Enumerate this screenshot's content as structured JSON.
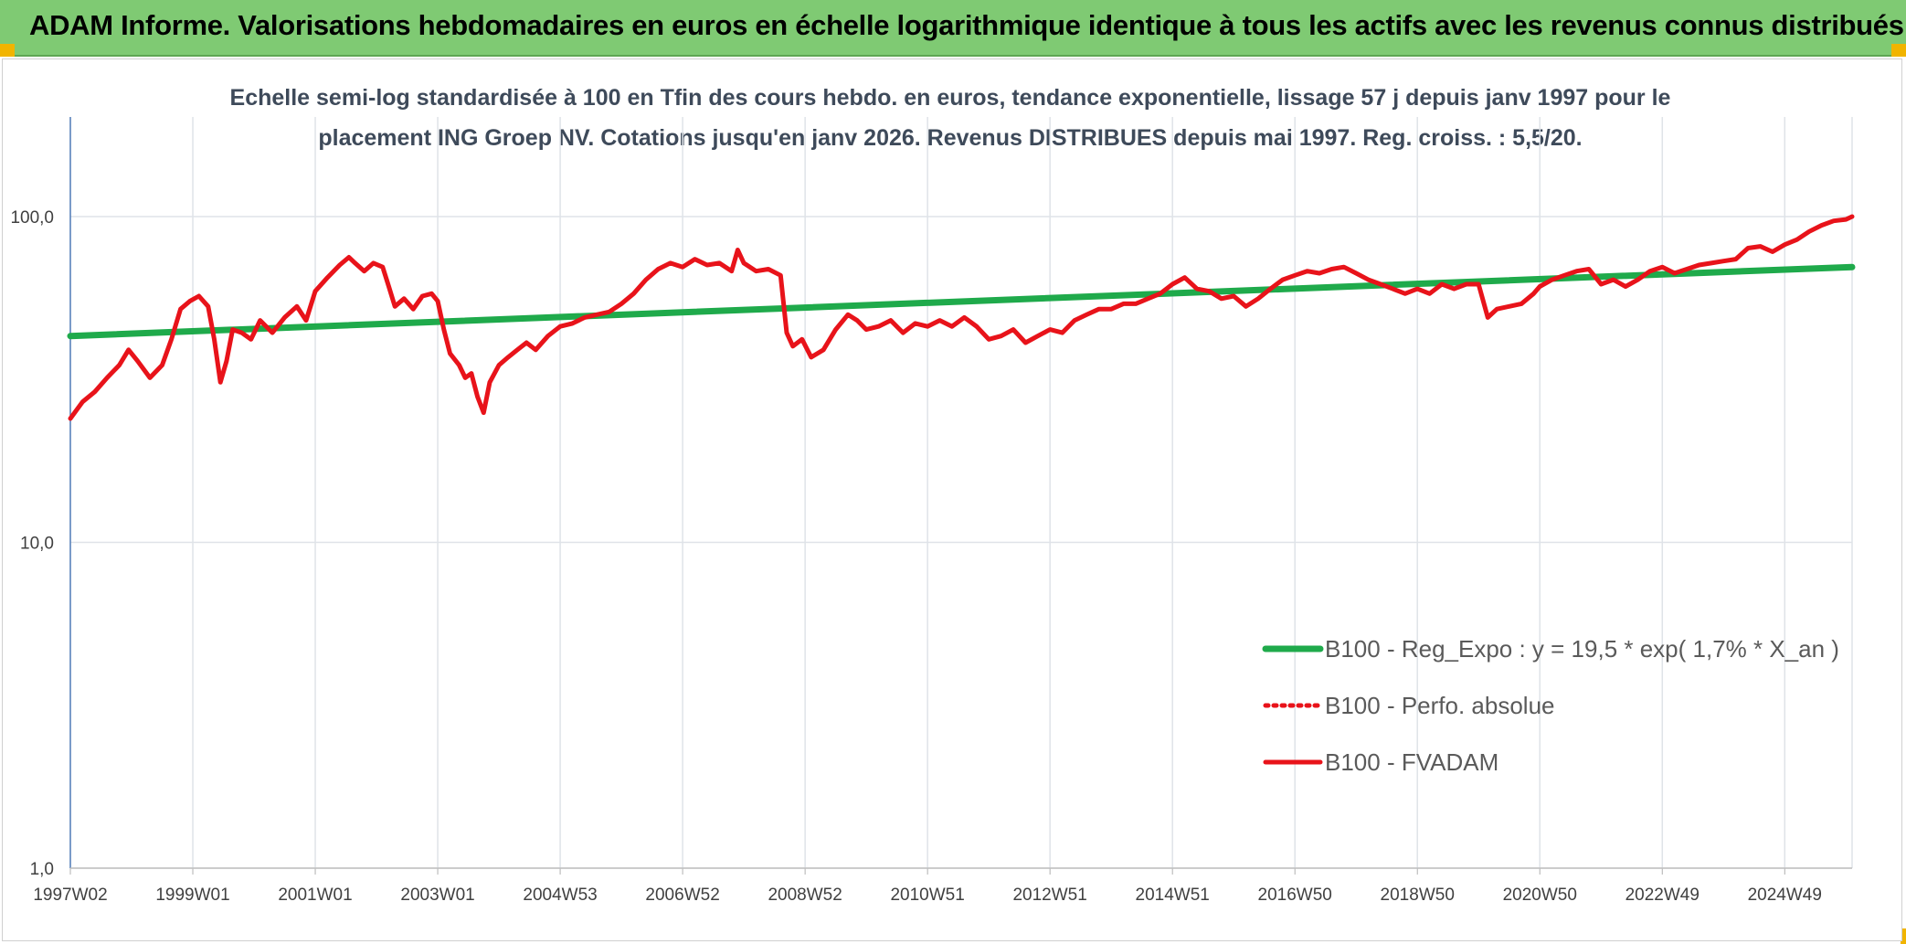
{
  "header": {
    "title": "ADAM Informe. Valorisations hebdomadaires en euros en échelle logarithmique identique à tous les actifs avec les revenus connus distribués"
  },
  "colors": {
    "banner": "#7fca73",
    "accent_corner": "#f1b400",
    "trend_line": "#1faa4b",
    "price_line": "#e8131a",
    "grid": "#dfe3e8",
    "axis": "#4f7ab5"
  },
  "chart_data": {
    "type": "line",
    "title_line1": "Echelle semi-log standardisée à 100 en Tfin des cours hebdo. en euros, tendance exponentielle, lissage 57 j depuis janv 1997 pour le",
    "title_line2": "placement ING Groep NV. Cotations jusqu'en janv 2026. Revenus DISTRIBUES depuis mai 1997. Reg. croiss. : 5,5/20.",
    "y_scale": "log",
    "ylim": [
      1,
      200
    ],
    "y_ticks": [
      {
        "value": 100,
        "label": "100,0"
      },
      {
        "value": 10,
        "label": "10,0"
      },
      {
        "value": 1,
        "label": "1,0"
      }
    ],
    "xlim": [
      1997.0,
      2026.1
    ],
    "x_ticks": [
      {
        "year": 1997.0,
        "label": "1997W02"
      },
      {
        "year": 1999.0,
        "label": "1999W01"
      },
      {
        "year": 2001.0,
        "label": "2001W01"
      },
      {
        "year": 2003.0,
        "label": "2003W01"
      },
      {
        "year": 2005.0,
        "label": "2004W53"
      },
      {
        "year": 2007.0,
        "label": "2006W52"
      },
      {
        "year": 2009.0,
        "label": "2008W52"
      },
      {
        "year": 2011.0,
        "label": "2010W51"
      },
      {
        "year": 2013.0,
        "label": "2012W51"
      },
      {
        "year": 2015.0,
        "label": "2014W51"
      },
      {
        "year": 2017.0,
        "label": "2016W50"
      },
      {
        "year": 2019.0,
        "label": "2018W50"
      },
      {
        "year": 2021.0,
        "label": "2020W50"
      },
      {
        "year": 2023.0,
        "label": "2022W49"
      },
      {
        "year": 2025.0,
        "label": "2024W49"
      }
    ],
    "grid": true,
    "legend_position": "bottom-right",
    "series": [
      {
        "name": "B100 - Reg_Expo : y = 19,5 * exp( 1,7% * X_an )",
        "style": "solid-thick",
        "color": "#1faa4b",
        "points": [
          [
            1997.0,
            43
          ],
          [
            2026.1,
            70
          ]
        ]
      },
      {
        "name": "B100 - Perfo. absolue",
        "style": "dotted",
        "color": "#e8131a",
        "points": []
      },
      {
        "name": "B100 - FVADAM",
        "style": "solid",
        "color": "#e8131a",
        "points": [
          [
            1997.0,
            24
          ],
          [
            1997.2,
            27
          ],
          [
            1997.4,
            29
          ],
          [
            1997.6,
            32
          ],
          [
            1997.8,
            35
          ],
          [
            1997.95,
            39
          ],
          [
            1998.1,
            36
          ],
          [
            1998.3,
            32
          ],
          [
            1998.5,
            35
          ],
          [
            1998.65,
            42
          ],
          [
            1998.8,
            52
          ],
          [
            1998.95,
            55
          ],
          [
            1999.1,
            57
          ],
          [
            1999.25,
            53
          ],
          [
            1999.35,
            42
          ],
          [
            1999.45,
            31
          ],
          [
            1999.55,
            36
          ],
          [
            1999.65,
            45
          ],
          [
            1999.8,
            44
          ],
          [
            1999.95,
            42
          ],
          [
            2000.1,
            48
          ],
          [
            2000.3,
            44
          ],
          [
            2000.5,
            49
          ],
          [
            2000.7,
            53
          ],
          [
            2000.85,
            48
          ],
          [
            2001.0,
            59
          ],
          [
            2001.2,
            65
          ],
          [
            2001.4,
            71
          ],
          [
            2001.55,
            75
          ],
          [
            2001.65,
            72
          ],
          [
            2001.8,
            68
          ],
          [
            2001.95,
            72
          ],
          [
            2002.1,
            70
          ],
          [
            2002.2,
            61
          ],
          [
            2002.3,
            53
          ],
          [
            2002.45,
            56
          ],
          [
            2002.6,
            52
          ],
          [
            2002.75,
            57
          ],
          [
            2002.9,
            58
          ],
          [
            2003.0,
            55
          ],
          [
            2003.1,
            45
          ],
          [
            2003.2,
            38
          ],
          [
            2003.35,
            35
          ],
          [
            2003.45,
            32
          ],
          [
            2003.55,
            33
          ],
          [
            2003.65,
            28
          ],
          [
            2003.75,
            25
          ],
          [
            2003.85,
            31
          ],
          [
            2004.0,
            35
          ],
          [
            2004.15,
            37
          ],
          [
            2004.3,
            39
          ],
          [
            2004.45,
            41
          ],
          [
            2004.6,
            39
          ],
          [
            2004.8,
            43
          ],
          [
            2005.0,
            46
          ],
          [
            2005.2,
            47
          ],
          [
            2005.4,
            49
          ],
          [
            2005.6,
            50
          ],
          [
            2005.8,
            51
          ],
          [
            2006.0,
            54
          ],
          [
            2006.2,
            58
          ],
          [
            2006.4,
            64
          ],
          [
            2006.6,
            69
          ],
          [
            2006.8,
            72
          ],
          [
            2007.0,
            70
          ],
          [
            2007.2,
            74
          ],
          [
            2007.4,
            71
          ],
          [
            2007.6,
            72
          ],
          [
            2007.8,
            68
          ],
          [
            2007.9,
            79
          ],
          [
            2008.0,
            72
          ],
          [
            2008.2,
            68
          ],
          [
            2008.4,
            69
          ],
          [
            2008.6,
            66
          ],
          [
            2008.7,
            44
          ],
          [
            2008.8,
            40
          ],
          [
            2008.95,
            42
          ],
          [
            2009.1,
            37
          ],
          [
            2009.3,
            39
          ],
          [
            2009.5,
            45
          ],
          [
            2009.7,
            50
          ],
          [
            2009.85,
            48
          ],
          [
            2010.0,
            45
          ],
          [
            2010.2,
            46
          ],
          [
            2010.4,
            48
          ],
          [
            2010.6,
            44
          ],
          [
            2010.8,
            47
          ],
          [
            2011.0,
            46
          ],
          [
            2011.2,
            48
          ],
          [
            2011.4,
            46
          ],
          [
            2011.6,
            49
          ],
          [
            2011.8,
            46
          ],
          [
            2012.0,
            42
          ],
          [
            2012.2,
            43
          ],
          [
            2012.4,
            45
          ],
          [
            2012.6,
            41
          ],
          [
            2012.8,
            43
          ],
          [
            2013.0,
            45
          ],
          [
            2013.2,
            44
          ],
          [
            2013.4,
            48
          ],
          [
            2013.6,
            50
          ],
          [
            2013.8,
            52
          ],
          [
            2014.0,
            52
          ],
          [
            2014.2,
            54
          ],
          [
            2014.4,
            54
          ],
          [
            2014.6,
            56
          ],
          [
            2014.8,
            58
          ],
          [
            2015.0,
            62
          ],
          [
            2015.2,
            65
          ],
          [
            2015.4,
            60
          ],
          [
            2015.6,
            59
          ],
          [
            2015.8,
            56
          ],
          [
            2016.0,
            57
          ],
          [
            2016.2,
            53
          ],
          [
            2016.4,
            56
          ],
          [
            2016.6,
            60
          ],
          [
            2016.8,
            64
          ],
          [
            2017.0,
            66
          ],
          [
            2017.2,
            68
          ],
          [
            2017.4,
            67
          ],
          [
            2017.6,
            69
          ],
          [
            2017.8,
            70
          ],
          [
            2018.0,
            67
          ],
          [
            2018.2,
            64
          ],
          [
            2018.4,
            62
          ],
          [
            2018.6,
            60
          ],
          [
            2018.8,
            58
          ],
          [
            2019.0,
            60
          ],
          [
            2019.2,
            58
          ],
          [
            2019.4,
            62
          ],
          [
            2019.6,
            60
          ],
          [
            2019.8,
            62
          ],
          [
            2020.0,
            62
          ],
          [
            2020.15,
            49
          ],
          [
            2020.3,
            52
          ],
          [
            2020.5,
            53
          ],
          [
            2020.7,
            54
          ],
          [
            2020.9,
            58
          ],
          [
            2021.0,
            61
          ],
          [
            2021.2,
            64
          ],
          [
            2021.4,
            66
          ],
          [
            2021.6,
            68
          ],
          [
            2021.8,
            69
          ],
          [
            2022.0,
            62
          ],
          [
            2022.2,
            64
          ],
          [
            2022.4,
            61
          ],
          [
            2022.6,
            64
          ],
          [
            2022.8,
            68
          ],
          [
            2023.0,
            70
          ],
          [
            2023.2,
            67
          ],
          [
            2023.4,
            69
          ],
          [
            2023.6,
            71
          ],
          [
            2023.8,
            72
          ],
          [
            2024.0,
            73
          ],
          [
            2024.2,
            74
          ],
          [
            2024.4,
            80
          ],
          [
            2024.6,
            81
          ],
          [
            2024.8,
            78
          ],
          [
            2025.0,
            82
          ],
          [
            2025.2,
            85
          ],
          [
            2025.4,
            90
          ],
          [
            2025.6,
            94
          ],
          [
            2025.8,
            97
          ],
          [
            2026.0,
            98
          ],
          [
            2026.1,
            100
          ]
        ]
      }
    ]
  }
}
